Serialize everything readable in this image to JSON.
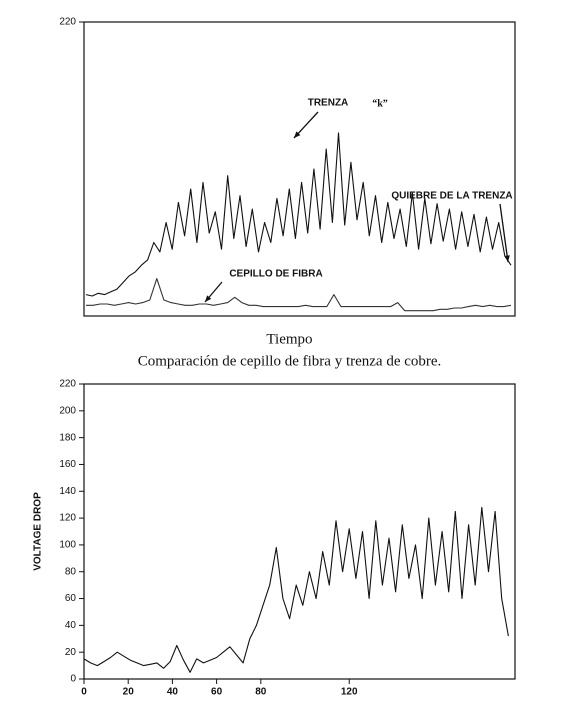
{
  "chart_data": [
    {
      "type": "line",
      "ylim": [
        0,
        220
      ],
      "yticks": [
        220
      ],
      "x_label": "Tiempo",
      "caption": "Comparación de cepillo de fibra y trenza de cobre.",
      "annotations": [
        {
          "text": "TRENZA"
        },
        {
          "text": "“k”"
        },
        {
          "text": "QUIEBRE DE LA TRENZA"
        },
        {
          "text": "CEPILLO DE FIBRA"
        }
      ],
      "series": [
        {
          "color": "#111",
          "values": [
            16,
            15,
            17,
            16,
            18,
            20,
            25,
            30,
            33,
            38,
            42,
            55,
            48,
            70,
            50,
            85,
            60,
            95,
            55,
            100,
            62,
            78,
            50,
            105,
            58,
            90,
            52,
            80,
            48,
            70,
            55,
            88,
            60,
            95,
            58,
            100,
            62,
            110,
            65,
            125,
            70,
            137,
            68,
            115,
            72,
            100,
            60,
            90,
            55,
            85,
            58,
            80,
            52,
            92,
            50,
            88,
            54,
            84,
            56,
            80,
            50,
            78,
            52,
            76,
            48,
            74,
            50,
            70,
            45,
            38
          ]
        },
        {
          "color": "#333",
          "values": [
            8,
            8,
            9,
            9,
            8,
            9,
            10,
            9,
            10,
            12,
            28,
            12,
            10,
            9,
            8,
            8,
            9,
            9,
            8,
            9,
            10,
            14,
            10,
            8,
            8,
            7,
            7,
            7,
            7,
            7,
            7,
            8,
            7,
            7,
            7,
            16,
            7,
            7,
            7,
            7,
            7,
            7,
            7,
            7,
            10,
            4,
            4,
            4,
            4,
            4,
            5,
            5,
            6,
            6,
            7,
            8,
            7,
            8,
            7,
            7,
            8
          ]
        }
      ]
    },
    {
      "type": "line",
      "y_label": "VOLTAGE DROP",
      "xlim": [
        0,
        195
      ],
      "xticks": [
        0,
        20,
        40,
        60,
        80,
        120
      ],
      "ylim": [
        0,
        220
      ],
      "yticks": [
        0,
        20,
        40,
        60,
        80,
        100,
        120,
        140,
        160,
        180,
        200,
        220
      ],
      "x": [
        0,
        3,
        6,
        9,
        12,
        15,
        18,
        21,
        24,
        27,
        30,
        33,
        36,
        39,
        42,
        45,
        48,
        51,
        54,
        57,
        60,
        63,
        66,
        69,
        72,
        75,
        78,
        81,
        84,
        87,
        90,
        93,
        96,
        99,
        102,
        105,
        108,
        111,
        114,
        117,
        120,
        123,
        126,
        129,
        132,
        135,
        138,
        141,
        144,
        147,
        150,
        153,
        156,
        159,
        162,
        165,
        168,
        171,
        174,
        177,
        180,
        183,
        186,
        189,
        192
      ],
      "series": [
        {
          "color": "#111",
          "values": [
            15,
            12,
            10,
            13,
            16,
            20,
            17,
            14,
            12,
            10,
            11,
            12,
            8,
            13,
            25,
            14,
            5,
            15,
            12,
            14,
            16,
            20,
            24,
            18,
            12,
            30,
            40,
            55,
            70,
            98,
            60,
            45,
            70,
            55,
            80,
            60,
            95,
            70,
            118,
            80,
            112,
            75,
            110,
            60,
            118,
            70,
            105,
            65,
            115,
            75,
            100,
            60,
            120,
            70,
            110,
            65,
            125,
            60,
            115,
            70,
            128,
            80,
            125,
            60,
            32
          ]
        }
      ]
    }
  ]
}
